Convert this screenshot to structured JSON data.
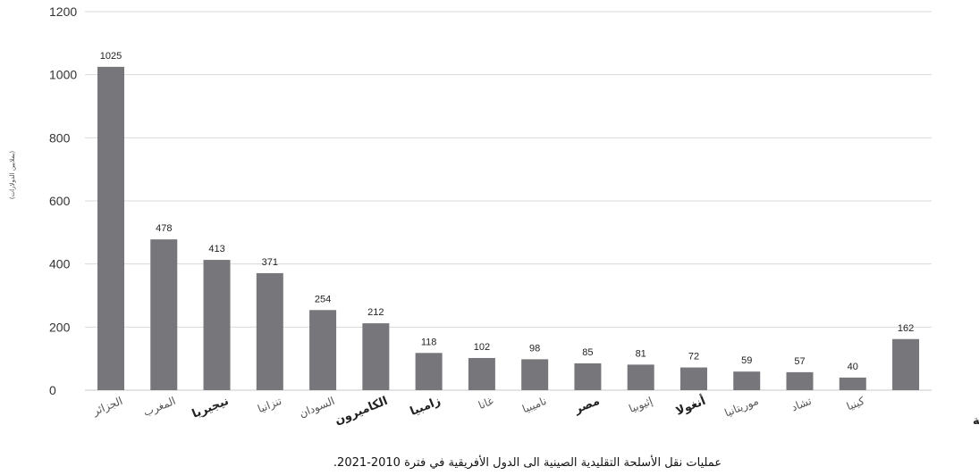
{
  "chart_data": {
    "type": "bar",
    "caption": "عمليات نقل الأسلحة التقليدية الصينية الى الدول الأفريقية في فترة  2010-2021.",
    "ylabel": "(بملايين الدولارات)",
    "ylim": [
      0,
      1200
    ],
    "yticks": [
      0,
      200,
      400,
      600,
      800,
      1000,
      1200
    ],
    "grid": true,
    "bar_color": "#77767a",
    "grid_color": "#d9d9d9",
    "categories": [
      "الجزائر",
      "المغرب",
      "نيجيريا",
      "تنزانيا",
      "السودان",
      "الكاميرون",
      "زامبيا",
      "غانا",
      "ناميبيا",
      "مصر",
      "إثيوبيا",
      "أنغولا",
      "موريتانيا",
      "تشاد",
      "كينيا",
      "بقية الدول الأفريقية"
    ],
    "values": [
      1025,
      478,
      413,
      371,
      254,
      212,
      118,
      102,
      98,
      85,
      81,
      72,
      59,
      57,
      40,
      162
    ],
    "strong_labels": [
      "نيجيريا",
      "الكاميرون",
      "زامبيا",
      "مصر",
      "أنغولا",
      "بقية الدول الأفريقية"
    ]
  }
}
